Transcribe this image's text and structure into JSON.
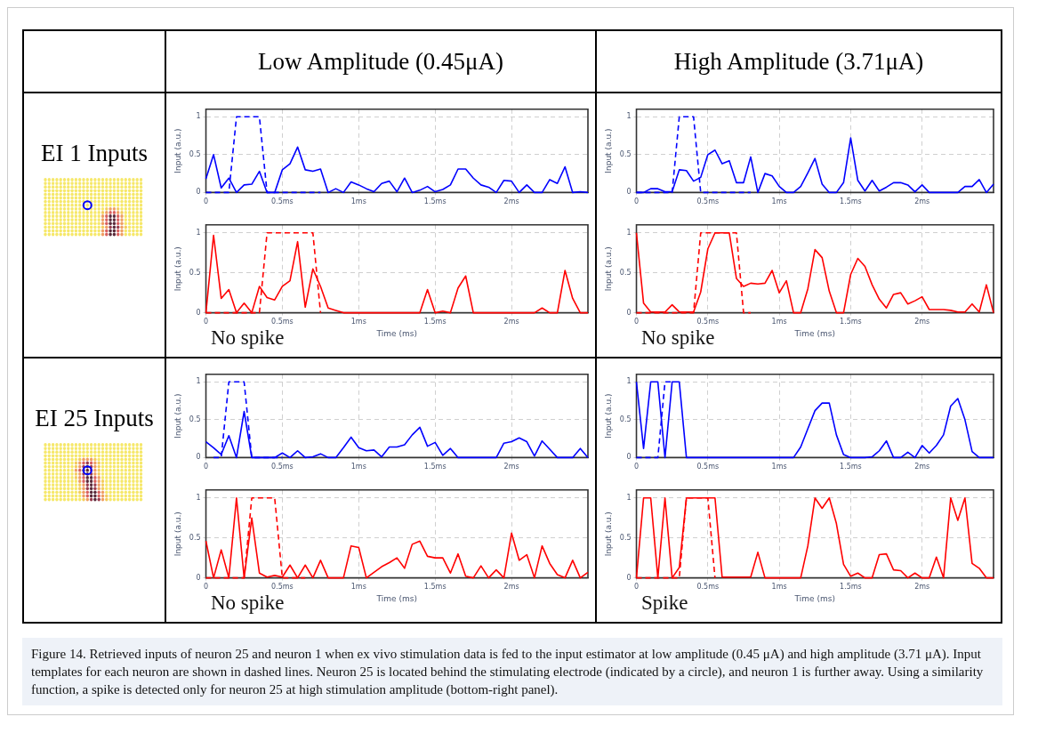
{
  "chart_data": [
    {
      "type": "line",
      "ylabel": "Input (a.u.)",
      "annotations": [
        "Low Amplitude (0.45μA)",
        "EI 1 Inputs"
      ],
      "xlim": [
        0,
        2.5
      ],
      "ylim": [
        0,
        1.1
      ],
      "xticks": [
        {
          "value": 0,
          "label": "0"
        },
        {
          "value": 0.5,
          "label": "0.5ms"
        },
        {
          "value": 1,
          "label": "1ms"
        },
        {
          "value": 1.5,
          "label": "1.5ms"
        },
        {
          "value": 2,
          "label": "2ms"
        }
      ],
      "yticks": [
        0,
        0.5,
        1
      ],
      "grid": true,
      "x": [
        0,
        0.05,
        0.1,
        0.15,
        0.2,
        0.25,
        0.3,
        0.35,
        0.4,
        0.45,
        0.5,
        0.55,
        0.6,
        0.65,
        0.7,
        0.75,
        0.8,
        0.85,
        0.9,
        0.95,
        1,
        1.05,
        1.1,
        1.15,
        1.2,
        1.25,
        1.3,
        1.35,
        1.4,
        1.45,
        1.5,
        1.55,
        1.6,
        1.65,
        1.7,
        1.75,
        1.8,
        1.85,
        1.9,
        1.95,
        2,
        2.05,
        2.1,
        2.15,
        2.2,
        2.25,
        2.3,
        2.35,
        2.4,
        2.45,
        2.5
      ],
      "series": [
        {
          "color": "#0000ff",
          "values": [
            0.18,
            0.5,
            0.06,
            0.19,
            0,
            0.1,
            0.11,
            0.28,
            0,
            0,
            0.3,
            0.38,
            0.6,
            0.3,
            0.28,
            0.31,
            0,
            0.05,
            0,
            0.14,
            0.1,
            0.05,
            0.01,
            0.12,
            0.15,
            0.01,
            0.19,
            0,
            0.03,
            0.08,
            0.01,
            0.04,
            0.1,
            0.31,
            0.31,
            0.19,
            0.1,
            0.07,
            0,
            0.16,
            0.15,
            0,
            0.1,
            0,
            0,
            0.17,
            0.12,
            0.34,
            0,
            0.01,
            0
          ]
        },
        {
          "color": "#0000ff",
          "line_style": "dashed",
          "x": [
            0,
            0.05,
            0.1,
            0.15,
            0.2,
            0.25,
            0.3,
            0.35,
            0.4,
            0.45,
            0.5,
            0.55,
            0.6,
            0.65,
            0.7,
            0.75
          ],
          "values": [
            0,
            0,
            0,
            0,
            1,
            1,
            1,
            1,
            0,
            0,
            0,
            0,
            0,
            0,
            0,
            0
          ]
        }
      ]
    },
    {
      "type": "line",
      "ylabel": "Input (a.u.)",
      "xlabel": "Time (ms)",
      "annotations": [
        "No spike"
      ],
      "xlim": [
        0,
        2.5
      ],
      "ylim": [
        0,
        1.1
      ],
      "xticks": [
        {
          "value": 0,
          "label": "0"
        },
        {
          "value": 0.5,
          "label": "0.5ms"
        },
        {
          "value": 1,
          "label": "1ms"
        },
        {
          "value": 1.5,
          "label": "1.5ms"
        },
        {
          "value": 2,
          "label": "2ms"
        }
      ],
      "yticks": [
        0,
        0.5,
        1
      ],
      "grid": true,
      "x": [
        0,
        0.05,
        0.1,
        0.15,
        0.2,
        0.25,
        0.3,
        0.35,
        0.4,
        0.45,
        0.5,
        0.55,
        0.6,
        0.65,
        0.7,
        0.75,
        0.8,
        0.85,
        0.9,
        0.95,
        1,
        1.05,
        1.1,
        1.15,
        1.2,
        1.25,
        1.3,
        1.35,
        1.4,
        1.45,
        1.5,
        1.55,
        1.6,
        1.65,
        1.7,
        1.75,
        1.8,
        1.85,
        1.9,
        1.95,
        2,
        2.05,
        2.1,
        2.15,
        2.2,
        2.25,
        2.3,
        2.35,
        2.4,
        2.45,
        2.5
      ],
      "series": [
        {
          "color": "#ff0000",
          "values": [
            0,
            0.97,
            0.18,
            0.29,
            0,
            0.12,
            0,
            0.33,
            0.19,
            0.16,
            0.33,
            0.4,
            0.89,
            0.07,
            0.55,
            0.33,
            0.06,
            0.03,
            0,
            0,
            0,
            0,
            0,
            0,
            0,
            0,
            0,
            0,
            0,
            0.29,
            0,
            0.02,
            0,
            0.31,
            0.46,
            0,
            0,
            0,
            0,
            0,
            0,
            0,
            0,
            0,
            0.06,
            0,
            0,
            0.53,
            0.18,
            0,
            0
          ]
        },
        {
          "color": "#ff0000",
          "line_style": "dashed",
          "x": [
            0,
            0.05,
            0.1,
            0.15,
            0.2,
            0.25,
            0.3,
            0.35,
            0.4,
            0.45,
            0.5,
            0.55,
            0.6,
            0.65,
            0.7,
            0.75
          ],
          "values": [
            0,
            0,
            0,
            0,
            0,
            0,
            0,
            0,
            1,
            1,
            1,
            1,
            1,
            1,
            1,
            0
          ]
        }
      ]
    },
    {
      "type": "line",
      "ylabel": "Input (a.u.)",
      "annotations": [
        "High Amplitude (3.71μA)"
      ],
      "xlim": [
        0,
        2.5
      ],
      "ylim": [
        0,
        1.1
      ],
      "xticks": [
        {
          "value": 0,
          "label": "0"
        },
        {
          "value": 0.5,
          "label": "0.5ms"
        },
        {
          "value": 1,
          "label": "1ms"
        },
        {
          "value": 1.5,
          "label": "1.5ms"
        },
        {
          "value": 2,
          "label": "2ms"
        }
      ],
      "yticks": [
        0,
        0.5,
        1
      ],
      "grid": true,
      "x": [
        0,
        0.05,
        0.1,
        0.15,
        0.2,
        0.25,
        0.3,
        0.35,
        0.4,
        0.45,
        0.5,
        0.55,
        0.6,
        0.65,
        0.7,
        0.75,
        0.8,
        0.85,
        0.9,
        0.95,
        1,
        1.05,
        1.1,
        1.15,
        1.2,
        1.25,
        1.3,
        1.35,
        1.4,
        1.45,
        1.5,
        1.55,
        1.6,
        1.65,
        1.7,
        1.75,
        1.8,
        1.85,
        1.9,
        1.95,
        2,
        2.05,
        2.1,
        2.15,
        2.2,
        2.25,
        2.3,
        2.35,
        2.4,
        2.45,
        2.5
      ],
      "series": [
        {
          "color": "#0000ff",
          "values": [
            0,
            0,
            0.05,
            0.05,
            0.01,
            0.01,
            0.3,
            0.29,
            0.15,
            0.2,
            0.5,
            0.56,
            0.38,
            0.42,
            0.13,
            0.13,
            0.47,
            0,
            0.25,
            0.22,
            0.08,
            0,
            0,
            0.08,
            0.26,
            0.45,
            0.11,
            0,
            0,
            0.13,
            0.72,
            0.16,
            0.02,
            0.16,
            0.02,
            0.07,
            0.13,
            0.13,
            0.1,
            0.01,
            0.1,
            0,
            0,
            0,
            0,
            0,
            0.08,
            0.08,
            0.17,
            0,
            0.11
          ]
        },
        {
          "color": "#0000ff",
          "line_style": "dashed",
          "x": [
            0,
            0.05,
            0.1,
            0.15,
            0.2,
            0.25,
            0.3,
            0.35,
            0.4,
            0.45,
            0.5,
            0.55,
            0.6,
            0.65,
            0.7,
            0.75,
            0.8
          ],
          "values": [
            0,
            0,
            0,
            0,
            0,
            0,
            1,
            1,
            1,
            0,
            0,
            0,
            0,
            0,
            0,
            0,
            0
          ]
        }
      ]
    },
    {
      "type": "line",
      "ylabel": "Input (a.u.)",
      "xlabel": "Time (ms)",
      "annotations": [
        "No spike"
      ],
      "xlim": [
        0,
        2.5
      ],
      "ylim": [
        0,
        1.1
      ],
      "xticks": [
        {
          "value": 0,
          "label": "0"
        },
        {
          "value": 0.5,
          "label": "0.5ms"
        },
        {
          "value": 1,
          "label": "1ms"
        },
        {
          "value": 1.5,
          "label": "1.5ms"
        },
        {
          "value": 2,
          "label": "2ms"
        }
      ],
      "yticks": [
        0,
        0.5,
        1
      ],
      "grid": true,
      "x": [
        0,
        0.05,
        0.1,
        0.15,
        0.2,
        0.25,
        0.3,
        0.35,
        0.4,
        0.45,
        0.5,
        0.55,
        0.6,
        0.65,
        0.7,
        0.75,
        0.8,
        0.85,
        0.9,
        0.95,
        1,
        1.05,
        1.1,
        1.15,
        1.2,
        1.25,
        1.3,
        1.35,
        1.4,
        1.45,
        1.5,
        1.55,
        1.6,
        1.65,
        1.7,
        1.75,
        1.8,
        1.85,
        1.9,
        1.95,
        2,
        2.05,
        2.1,
        2.15,
        2.2,
        2.25,
        2.3,
        2.35,
        2.4,
        2.45,
        2.5
      ],
      "series": [
        {
          "color": "#ff0000",
          "values": [
            1,
            0.12,
            0.01,
            0.01,
            0.01,
            0.1,
            0.01,
            0.01,
            0.01,
            0.26,
            0.8,
            1,
            1,
            1,
            0.43,
            0.33,
            0.37,
            0.36,
            0.37,
            0.53,
            0.25,
            0.4,
            0,
            0,
            0.3,
            0.79,
            0.69,
            0.27,
            0,
            0,
            0.48,
            0.68,
            0.58,
            0.35,
            0.17,
            0.06,
            0.23,
            0.25,
            0.11,
            0.15,
            0.2,
            0.04,
            0.04,
            0.04,
            0.03,
            0.01,
            0.01,
            0.11,
            0.01,
            0.35,
            0
          ]
        },
        {
          "color": "#ff0000",
          "line_style": "dashed",
          "x": [
            0,
            0.05,
            0.1,
            0.15,
            0.2,
            0.25,
            0.3,
            0.35,
            0.4,
            0.45,
            0.5,
            0.55,
            0.6,
            0.65,
            0.7,
            0.75,
            0.8
          ],
          "values": [
            0,
            0,
            0,
            0,
            0,
            0,
            0,
            0,
            0,
            1,
            1,
            1,
            1,
            1,
            1,
            0,
            0
          ]
        }
      ]
    },
    {
      "type": "line",
      "ylabel": "Input (a.u.)",
      "annotations": [
        "EI 25 Inputs"
      ],
      "xlim": [
        0,
        2.5
      ],
      "ylim": [
        0,
        1.1
      ],
      "xticks": [
        {
          "value": 0,
          "label": "0"
        },
        {
          "value": 0.5,
          "label": "0.5ms"
        },
        {
          "value": 1,
          "label": "1ms"
        },
        {
          "value": 1.5,
          "label": "1.5ms"
        },
        {
          "value": 2,
          "label": "2ms"
        }
      ],
      "yticks": [
        0,
        0.5,
        1
      ],
      "grid": true,
      "x": [
        0,
        0.05,
        0.1,
        0.15,
        0.2,
        0.25,
        0.3,
        0.35,
        0.4,
        0.45,
        0.5,
        0.55,
        0.6,
        0.65,
        0.7,
        0.75,
        0.8,
        0.85,
        0.9,
        0.95,
        1,
        1.05,
        1.1,
        1.15,
        1.2,
        1.25,
        1.3,
        1.35,
        1.4,
        1.45,
        1.5,
        1.55,
        1.6,
        1.65,
        1.7,
        1.75,
        1.8,
        1.85,
        1.9,
        1.95,
        2,
        2.05,
        2.1,
        2.15,
        2.2,
        2.25,
        2.3,
        2.35,
        2.4,
        2.45,
        2.5
      ],
      "series": [
        {
          "color": "#0000ff",
          "values": [
            0.21,
            0.13,
            0.04,
            0.29,
            0,
            0.61,
            0,
            0,
            0,
            0,
            0.06,
            0,
            0.09,
            0,
            0.01,
            0.05,
            0,
            0,
            0.13,
            0.27,
            0.13,
            0.09,
            0.1,
            0.01,
            0.14,
            0.14,
            0.17,
            0.3,
            0.4,
            0.15,
            0.2,
            0.03,
            0.12,
            0,
            0,
            0,
            0,
            0,
            0,
            0.19,
            0.21,
            0.26,
            0.21,
            0.02,
            0.22,
            0.11,
            0,
            0,
            0,
            0.12,
            0
          ]
        },
        {
          "color": "#0000ff",
          "line_style": "dashed",
          "x": [
            0.05,
            0.1,
            0.15,
            0.2,
            0.25,
            0.3,
            0.35,
            0.4,
            0.45,
            0.5
          ],
          "values": [
            0,
            0,
            1,
            1,
            1,
            0,
            0,
            0,
            0,
            0
          ]
        }
      ]
    },
    {
      "type": "line",
      "ylabel": "Input (a.u.)",
      "xlabel": "Time (ms)",
      "annotations": [
        "No spike"
      ],
      "xlim": [
        0,
        2.5
      ],
      "ylim": [
        0,
        1.1
      ],
      "xticks": [
        {
          "value": 0,
          "label": "0"
        },
        {
          "value": 0.5,
          "label": "0.5ms"
        },
        {
          "value": 1,
          "label": "1ms"
        },
        {
          "value": 1.5,
          "label": "1.5ms"
        },
        {
          "value": 2,
          "label": "2ms"
        }
      ],
      "yticks": [
        0,
        0.5,
        1
      ],
      "grid": true,
      "x": [
        0,
        0.05,
        0.1,
        0.15,
        0.2,
        0.25,
        0.3,
        0.35,
        0.4,
        0.45,
        0.5,
        0.55,
        0.6,
        0.65,
        0.7,
        0.75,
        0.8,
        0.85,
        0.9,
        0.95,
        1,
        1.05,
        1.1,
        1.15,
        1.2,
        1.25,
        1.3,
        1.35,
        1.4,
        1.45,
        1.5,
        1.55,
        1.6,
        1.65,
        1.7,
        1.75,
        1.8,
        1.85,
        1.9,
        1.95,
        2,
        2.05,
        2.1,
        2.15,
        2.2,
        2.25,
        2.3,
        2.35,
        2.4,
        2.45,
        2.5
      ],
      "series": [
        {
          "color": "#ff0000",
          "values": [
            0.46,
            0,
            0.35,
            0,
            1,
            0,
            0.75,
            0.06,
            0.01,
            0.03,
            0.01,
            0.16,
            0,
            0.16,
            0,
            0.22,
            0,
            0,
            0,
            0.4,
            0.38,
            0,
            0.07,
            0.14,
            0.19,
            0.25,
            0.12,
            0.42,
            0.46,
            0.27,
            0.25,
            0.25,
            0.06,
            0.3,
            0.02,
            0,
            0.15,
            0,
            0.1,
            0,
            0.56,
            0.22,
            0.29,
            0,
            0.4,
            0.18,
            0.04,
            0,
            0.22,
            0,
            0.07
          ]
        },
        {
          "color": "#ff0000",
          "line_style": "dashed",
          "x": [
            0,
            0.05,
            0.1,
            0.15,
            0.2,
            0.25,
            0.3,
            0.35,
            0.4,
            0.45,
            0.5,
            0.55,
            0.6,
            0.65
          ],
          "values": [
            0,
            0,
            0,
            0,
            0,
            0,
            1,
            1,
            1,
            1,
            0,
            0,
            0,
            0
          ]
        }
      ]
    },
    {
      "type": "line",
      "ylabel": "Input (a.u.)",
      "xlim": [
        0,
        2.5
      ],
      "ylim": [
        0,
        1.1
      ],
      "xticks": [
        {
          "value": 0,
          "label": "0"
        },
        {
          "value": 0.5,
          "label": "0.5ms"
        },
        {
          "value": 1,
          "label": "1ms"
        },
        {
          "value": 1.5,
          "label": "1.5ms"
        },
        {
          "value": 2,
          "label": "2ms"
        }
      ],
      "yticks": [
        0,
        0.5,
        1
      ],
      "grid": true,
      "x": [
        0,
        0.05,
        0.1,
        0.15,
        0.2,
        0.25,
        0.3,
        0.35,
        0.4,
        0.45,
        0.5,
        0.55,
        0.6,
        0.65,
        0.7,
        0.75,
        0.8,
        0.85,
        0.9,
        0.95,
        1,
        1.05,
        1.1,
        1.15,
        1.2,
        1.25,
        1.3,
        1.35,
        1.4,
        1.45,
        1.5,
        1.55,
        1.6,
        1.65,
        1.7,
        1.75,
        1.8,
        1.85,
        1.9,
        1.95,
        2,
        2.05,
        2.1,
        2.15,
        2.2,
        2.25,
        2.3,
        2.35,
        2.4,
        2.45,
        2.5
      ],
      "series": [
        {
          "color": "#0000ff",
          "values": [
            1,
            0.12,
            1,
            1,
            0,
            1,
            1,
            0,
            0,
            0,
            0,
            0,
            0,
            0,
            0,
            0,
            0,
            0,
            0,
            0,
            0,
            0,
            0,
            0.14,
            0.38,
            0.62,
            0.72,
            0.72,
            0.3,
            0.04,
            0,
            0,
            0,
            0.01,
            0.09,
            0.22,
            0,
            0,
            0.07,
            0,
            0.16,
            0.06,
            0.16,
            0.3,
            0.68,
            0.78,
            0.5,
            0.08,
            0,
            0,
            0
          ]
        },
        {
          "color": "#0000ff",
          "line_style": "dashed",
          "x": [
            0,
            0.05,
            0.1,
            0.15,
            0.2,
            0.25
          ],
          "values": [
            0,
            0,
            0,
            0,
            1,
            1
          ]
        }
      ]
    },
    {
      "type": "line",
      "ylabel": "Input (a.u.)",
      "xlabel": "Time (ms)",
      "annotations": [
        "Spike",
        "Figure 14. Retrieved inputs of neuron 25 and neuron 1 when ex vivo stimulation data is fed to the input estimator at low amplitude (0.45 μA) and high amplitude (3.71 μA). Input templates for each neuron are shown in dashed lines. Neuron 25 is located behind the stimulating electrode (indicated by a circle), and neuron 1 is further away. Using a similarity function, a spike is detected only for neuron 25 at high stimulation amplitude (bottom-right panel)."
      ],
      "xlim": [
        0,
        2.5
      ],
      "ylim": [
        0,
        1.1
      ],
      "xticks": [
        0,
        {
          "value": 0.5,
          "label": "0.5ms"
        },
        {
          "value": 1,
          "label": "1ms"
        },
        {
          "value": 1.5,
          "label": "1.5ms"
        },
        {
          "value": 2,
          "label": "2ms"
        }
      ],
      "yticks": [
        0,
        0.5,
        1
      ],
      "grid": true,
      "x": [
        0,
        0.05,
        0.1,
        0.15,
        0.2,
        0.25,
        0.3,
        0.35,
        0.4,
        0.45,
        0.5,
        0.55,
        0.6,
        0.65,
        0.7,
        0.75,
        0.8,
        0.85,
        0.9,
        0.95,
        1,
        1.05,
        1.1,
        1.15,
        1.2,
        1.25,
        1.3,
        1.35,
        1.4,
        1.45,
        1.5,
        1.55,
        1.6,
        1.65,
        1.7,
        1.75,
        1.8,
        1.85,
        1.9,
        1.95,
        2,
        2.05,
        2.1,
        2.15,
        2.2,
        2.25,
        2.3,
        2.35,
        2.4,
        2.45,
        2.5
      ],
      "series": [
        {
          "color": "#ff0000",
          "values": [
            0,
            1,
            1,
            0,
            1,
            0,
            0.13,
            1,
            1,
            1,
            1,
            1,
            0.01,
            0.01,
            0.01,
            0.01,
            0.01,
            0.32,
            0,
            0,
            0,
            0,
            0,
            0,
            0.4,
            1,
            0.87,
            1,
            0.68,
            0.17,
            0.02,
            0.06,
            0,
            0,
            0.29,
            0.3,
            0.1,
            0.09,
            0,
            0.06,
            0,
            0,
            0.26,
            0,
            1,
            0.72,
            1,
            0.18,
            0.12,
            0,
            0
          ]
        },
        {
          "color": "#ff0000",
          "line_style": "dashed",
          "x": [
            0,
            0.05,
            0.1,
            0.15,
            0.2,
            0.25,
            0.3,
            0.35,
            0.4,
            0.45,
            0.5,
            0.55
          ],
          "values": [
            0,
            0,
            0,
            0,
            0,
            0,
            0,
            1,
            1,
            1,
            1,
            0
          ]
        }
      ]
    }
  ]
}
